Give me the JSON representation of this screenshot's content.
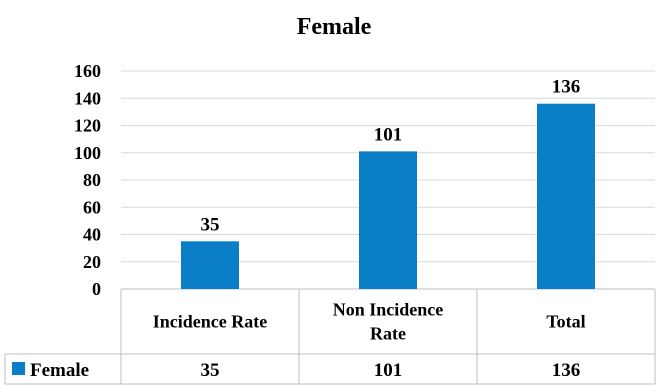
{
  "chart_data": {
    "type": "bar",
    "title": "Female",
    "categories": [
      "Incidence Rate",
      "Non Incidence Rate",
      "Total"
    ],
    "category_lines": [
      [
        "Incidence Rate"
      ],
      [
        "Non Incidence",
        "Rate"
      ],
      [
        "Total"
      ]
    ],
    "series": [
      {
        "name": "Female",
        "values": [
          35,
          101,
          136
        ],
        "color": "#0a7fc7"
      }
    ],
    "ylim": [
      0,
      160
    ],
    "yticks": [
      0,
      20,
      40,
      60,
      80,
      100,
      120,
      140,
      160
    ],
    "grid": true,
    "data_labels": true,
    "legend": "data-table",
    "data_table": true
  }
}
